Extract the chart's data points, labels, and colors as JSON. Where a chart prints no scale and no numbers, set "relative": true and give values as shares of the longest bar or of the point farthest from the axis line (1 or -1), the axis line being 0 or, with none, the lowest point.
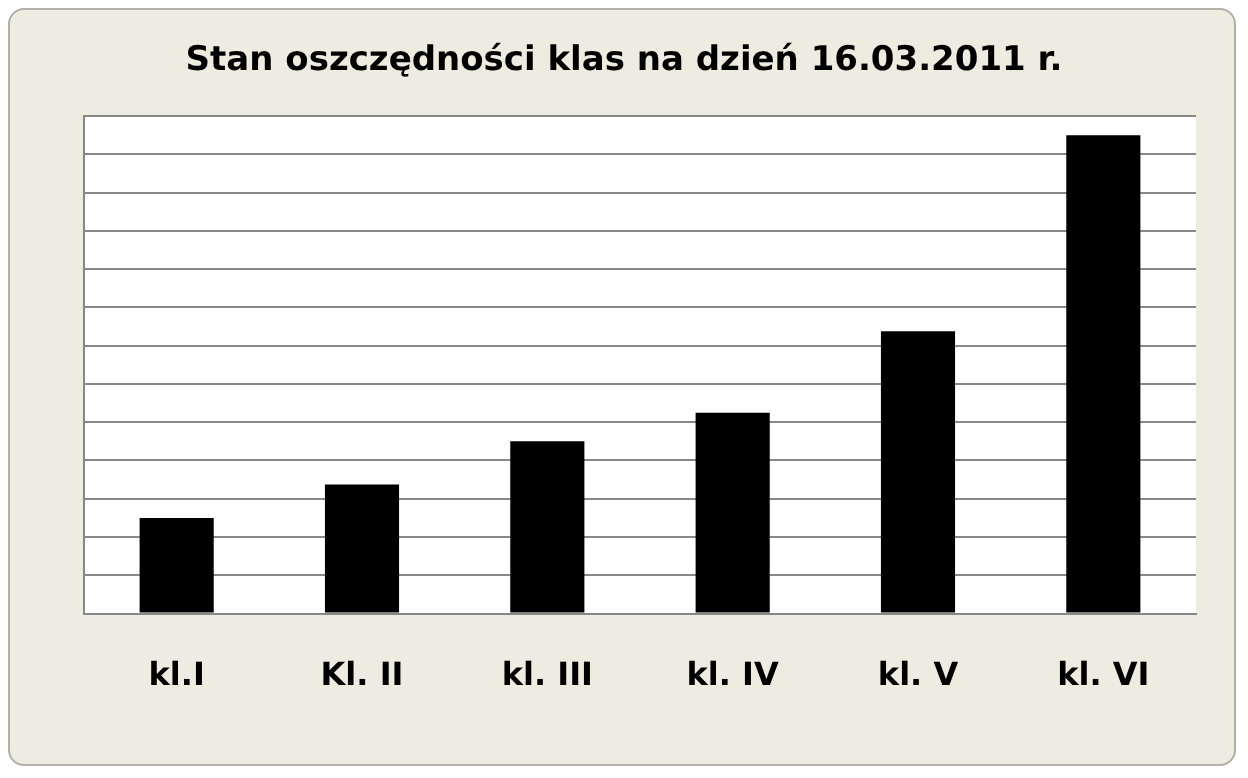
{
  "chart_data": {
    "type": "bar",
    "title": "Stan oszczędności  klas na dzień 16.03.2011 r.",
    "categories": [
      "kl.I",
      "Kl. II",
      "kl. III",
      "kl. IV",
      "kl. V",
      "kl. VI"
    ],
    "values": [
      0.2,
      0.27,
      0.36,
      0.42,
      0.59,
      1
    ],
    "color": "#000000",
    "relative": true,
    "grid": "y"
  }
}
